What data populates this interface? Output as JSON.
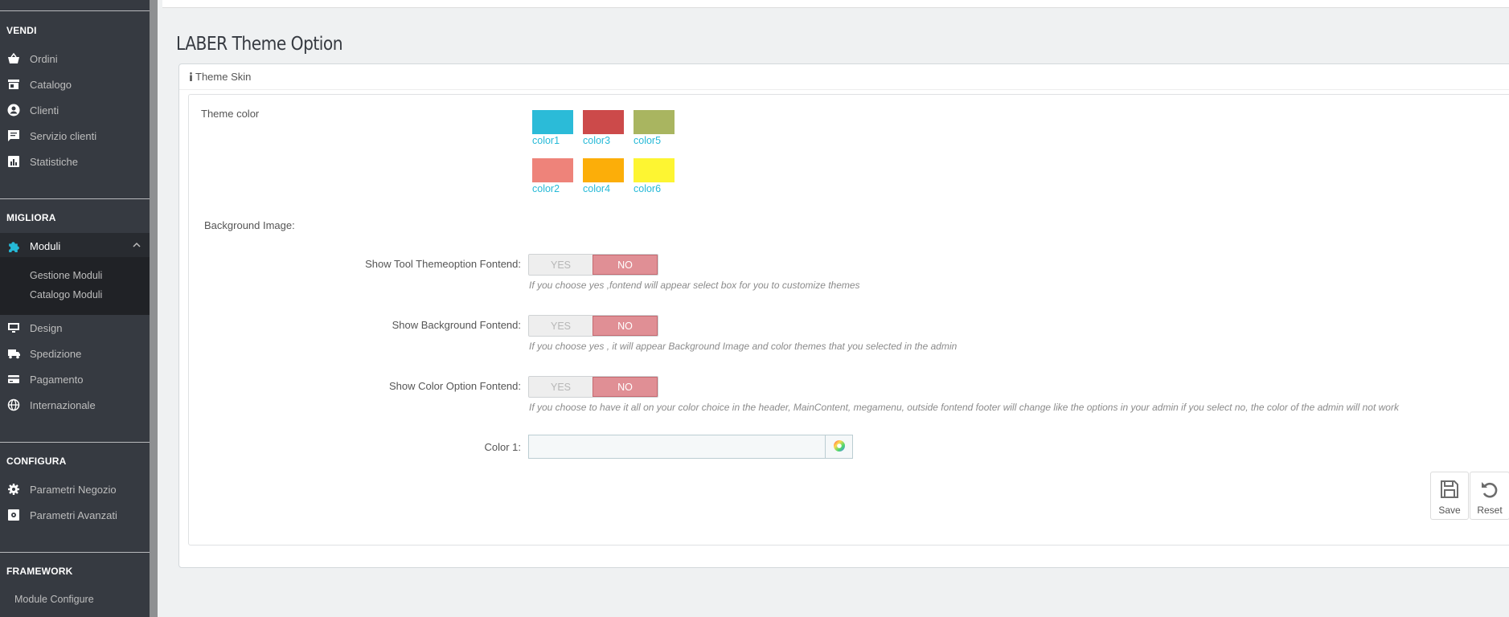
{
  "sidebar": {
    "sections": {
      "vendi": "VENDI",
      "migliora": "MIGLIORA",
      "configura": "CONFIGURA",
      "framework": "FRAMEWORK"
    },
    "vendi_items": [
      {
        "label": "Ordini",
        "icon": "basket-icon"
      },
      {
        "label": "Catalogo",
        "icon": "store-icon"
      },
      {
        "label": "Clienti",
        "icon": "user-circle-icon"
      },
      {
        "label": "Servizio clienti",
        "icon": "chat-icon"
      },
      {
        "label": "Statistiche",
        "icon": "stats-icon"
      }
    ],
    "moduli": {
      "label": "Moduli",
      "icon": "puzzle-icon"
    },
    "moduli_sub": [
      "Gestione Moduli",
      "Catalogo Moduli"
    ],
    "migliora_items": [
      {
        "label": "Design",
        "icon": "monitor-icon"
      },
      {
        "label": "Spedizione",
        "icon": "truck-icon"
      },
      {
        "label": "Pagamento",
        "icon": "card-icon"
      },
      {
        "label": "Internazionale",
        "icon": "globe-icon"
      }
    ],
    "configura_items": [
      {
        "label": "Parametri Negozio",
        "icon": "gear-icon"
      },
      {
        "label": "Parametri Avanzati",
        "icon": "settings-box-icon"
      }
    ],
    "framework_items": [
      "Module Configure"
    ]
  },
  "page": {
    "title": "LABER Theme Option",
    "panel_heading": "Theme Skin"
  },
  "theme_color": {
    "label": "Theme color",
    "swatches": [
      {
        "name": "color1",
        "color": "#2bbbd8"
      },
      {
        "name": "color3",
        "color": "#cc4a4a"
      },
      {
        "name": "color5",
        "color": "#a9b560"
      },
      {
        "name": "color2",
        "color": "#ee837a"
      },
      {
        "name": "color4",
        "color": "#fcae09"
      },
      {
        "name": "color6",
        "color": "#fdf532"
      }
    ]
  },
  "background_image": {
    "label": "Background Image:"
  },
  "options": [
    {
      "label": "Show Tool Themeoption Fontend:",
      "yes": "YES",
      "no": "NO",
      "selected": "NO",
      "help": "If you choose yes ,fontend will appear select box for you to customize themes"
    },
    {
      "label": "Show Background Fontend:",
      "yes": "YES",
      "no": "NO",
      "selected": "NO",
      "help": "If you choose yes , it will appear Background Image and color themes that you selected in the admin"
    },
    {
      "label": "Show Color Option Fontend:",
      "yes": "YES",
      "no": "NO",
      "selected": "NO",
      "help": "If you choose to have it all on your color choice in the header, MainContent, megamenu, outside fontend footer will change like the options in your admin if you select no, the color of the admin will not work"
    }
  ],
  "color1": {
    "label": "Color 1:",
    "value": ""
  },
  "actions": {
    "save": "Save",
    "reset": "Reset"
  },
  "colors": {
    "accent": "#25b9d7",
    "sidebar": "#363a41",
    "no_active": "#e08f95"
  }
}
